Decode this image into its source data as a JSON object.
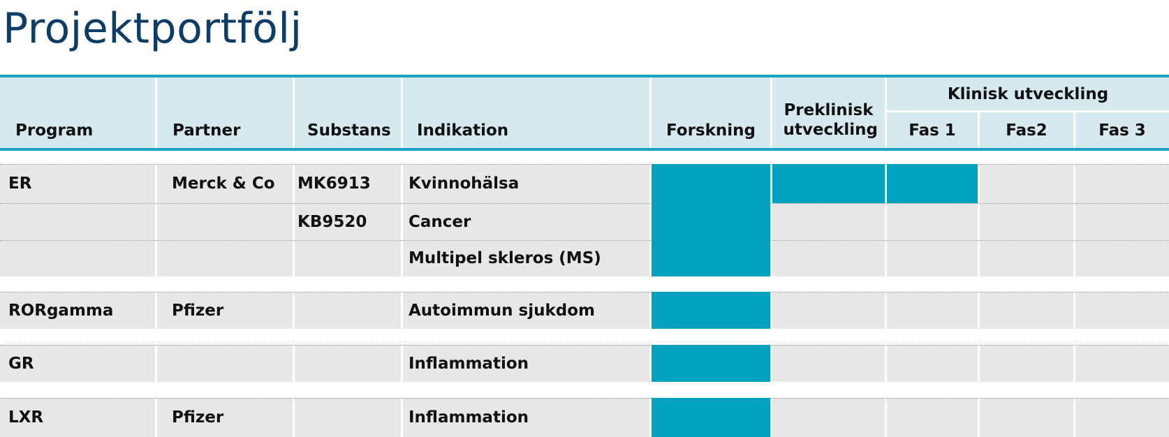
{
  "title": "Projektportfölj",
  "colors": {
    "title": "#0d3c66",
    "accent": "#19a2c5",
    "header_bg": "#d5e9ef",
    "row_bg": "#e7e7e7",
    "bar": "#00a1bf"
  },
  "headers": {
    "program": "Program",
    "partner": "Partner",
    "substans": "Substans",
    "indikation": "Indikation",
    "forskning": "Forskning",
    "preklinisk": "Preklinisk utveckling",
    "klinisk": "Klinisk utveckling",
    "fas1": "Fas 1",
    "fas2": "Fas2",
    "fas3": "Fas 3"
  },
  "rows": [
    {
      "program": "ER",
      "partner": "Merck & Co",
      "substans": "MK6913",
      "indikation": "Kvinnohälsa",
      "stage": "Fas 1"
    },
    {
      "program": "",
      "partner": "",
      "substans": "KB9520",
      "indikation": "Cancer",
      "stage": "Forskning"
    },
    {
      "program": "",
      "partner": "",
      "substans": "",
      "indikation": "Multipel skleros (MS)",
      "stage": "Forskning"
    },
    {
      "program": "RORgamma",
      "partner": "Pfizer",
      "substans": "",
      "indikation": "Autoimmun sjukdom",
      "stage": "Forskning"
    },
    {
      "program": "GR",
      "partner": "",
      "substans": "",
      "indikation": "Inflammation",
      "stage": "Forskning"
    },
    {
      "program": "LXR",
      "partner": "Pfizer",
      "substans": "",
      "indikation": "Inflammation",
      "stage": "Forskning"
    }
  ]
}
